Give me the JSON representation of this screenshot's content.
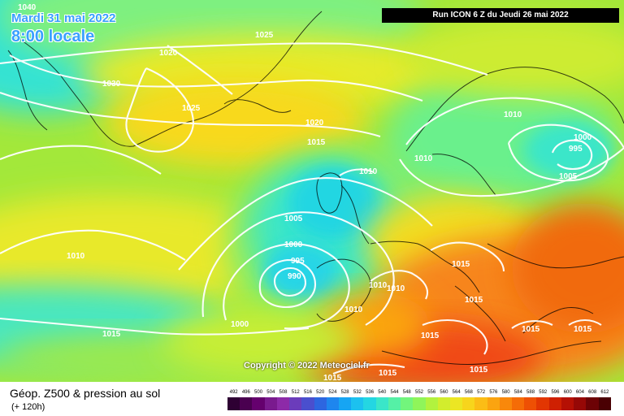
{
  "header": {
    "date": "Mardi 31 mai 2022",
    "time": "8:00 locale",
    "run": "Run ICON 6 Z du Jeudi 26 mai 2022"
  },
  "map": {
    "copyright": "Copyright © 2022 Meteociel.fr",
    "isobar_labels": [
      "1040",
      "1025",
      "1020",
      "1030",
      "1025",
      "1020",
      "1015",
      "1010",
      "1005",
      "1000",
      "995",
      "990",
      "1010",
      "1010",
      "1010",
      "1000",
      "995",
      "1005",
      "1010",
      "1010",
      "1010",
      "1015",
      "1015",
      "1015",
      "1015",
      "1015",
      "1000",
      "1015",
      "1015",
      "1015",
      "1015"
    ]
  },
  "footer": {
    "title": "Géop. Z500 & pression au sol",
    "subtitle": "(+ 120h)"
  },
  "legend": {
    "labels": [
      "492",
      "496",
      "500",
      "504",
      "508",
      "512",
      "516",
      "520",
      "524",
      "528",
      "532",
      "536",
      "540",
      "544",
      "548",
      "552",
      "556",
      "560",
      "564",
      "568",
      "572",
      "576",
      "580",
      "584",
      "588",
      "592",
      "596",
      "600",
      "604",
      "608",
      "612"
    ],
    "colors": [
      "#2e0033",
      "#4a0050",
      "#65006e",
      "#7a1a8e",
      "#8d2aa8",
      "#6b3cbb",
      "#4a4fce",
      "#2d66e0",
      "#1e86ee",
      "#16a5f3",
      "#1cc1ef",
      "#24d6e2",
      "#3ae6c9",
      "#55f0a6",
      "#72f57c",
      "#8ff55a",
      "#b2f23e",
      "#d2ed2d",
      "#ece623",
      "#f7d51c",
      "#fbbd16",
      "#fba410",
      "#f9880b",
      "#f56c07",
      "#ee5004",
      "#e23602",
      "#cf2002",
      "#b51004",
      "#960806",
      "#6d0205",
      "#4a0003"
    ]
  }
}
